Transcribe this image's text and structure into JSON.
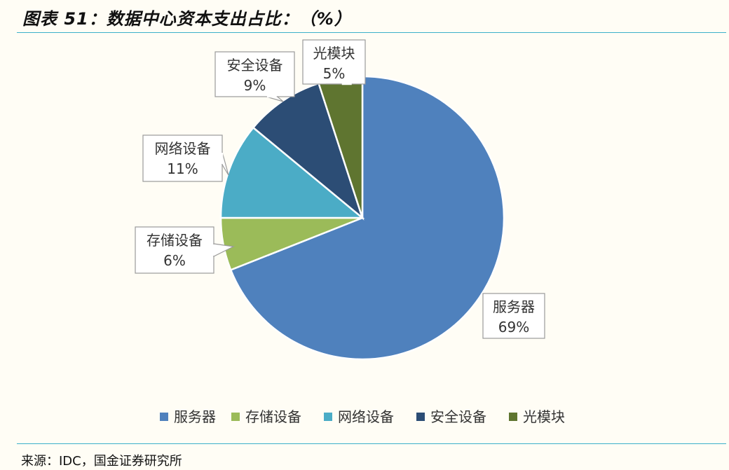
{
  "figure": {
    "title": "图表 51：数据中心资本支出占比：（%）",
    "source": "来源：IDC，国金证券研究所"
  },
  "chart_data": {
    "type": "pie",
    "title": "",
    "start_angle_deg": 0,
    "direction": "clockwise",
    "legend_position": "bottom",
    "slices": [
      {
        "name": "服务器",
        "value": 69,
        "label_pct": "69%",
        "color": "#4f81bd"
      },
      {
        "name": "存储设备",
        "value": 6,
        "label_pct": "6%",
        "color": "#9bbb59"
      },
      {
        "name": "网络设备",
        "value": 11,
        "label_pct": "11%",
        "color": "#4bacc6"
      },
      {
        "name": "安全设备",
        "value": 9,
        "label_pct": "9%",
        "color": "#2c4d75"
      },
      {
        "name": "光模块",
        "value": 5,
        "label_pct": "5%",
        "color": "#5f7530"
      }
    ]
  }
}
